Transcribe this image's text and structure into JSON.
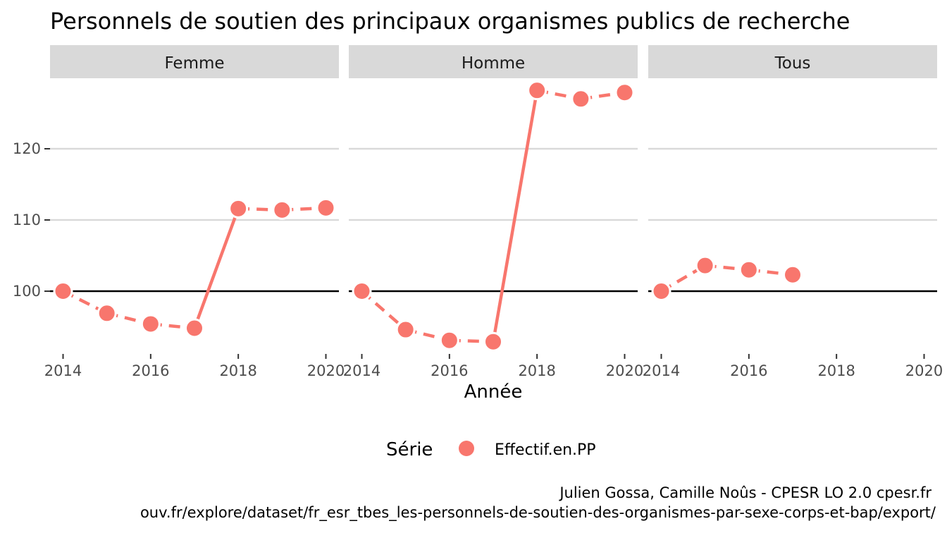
{
  "chart_data": {
    "type": "line",
    "title": "Personnels de soutien des principaux organismes publics de recherche",
    "xlabel": "Année",
    "ylabel": "",
    "xlim": [
      2014,
      2020
    ],
    "ylim": [
      91,
      130
    ],
    "x_ticks": [
      2014,
      2016,
      2018,
      2020
    ],
    "y_ticks": [
      100,
      110,
      120
    ],
    "reference_line": 100,
    "grid": true,
    "legend": {
      "title": "Série",
      "position": "bottom",
      "entries": [
        "Effectif.en.PP"
      ]
    },
    "series_color": "#f8766d",
    "facets": [
      {
        "label": "Femme",
        "x": [
          2014,
          2015,
          2016,
          2017,
          2018,
          2019,
          2020
        ],
        "values": [
          100,
          96.9,
          95.4,
          94.8,
          111.6,
          111.4,
          111.7
        ]
      },
      {
        "label": "Homme",
        "x": [
          2014,
          2015,
          2016,
          2017,
          2018,
          2019,
          2020
        ],
        "values": [
          100,
          94.6,
          93.1,
          92.9,
          128.2,
          127.0,
          127.9
        ]
      },
      {
        "label": "Tous",
        "x": [
          2014,
          2015,
          2016,
          2017
        ],
        "values": [
          100,
          103.6,
          103.0,
          102.3
        ]
      }
    ]
  },
  "caption": {
    "line1": "Julien Gossa, Camille Noûs - CPESR LO 2.0 cpesr.fr",
    "line2": "ouv.fr/explore/dataset/fr_esr_tbes_les-personnels-de-soutien-des-organismes-par-sexe-corps-et-bap/export/"
  }
}
